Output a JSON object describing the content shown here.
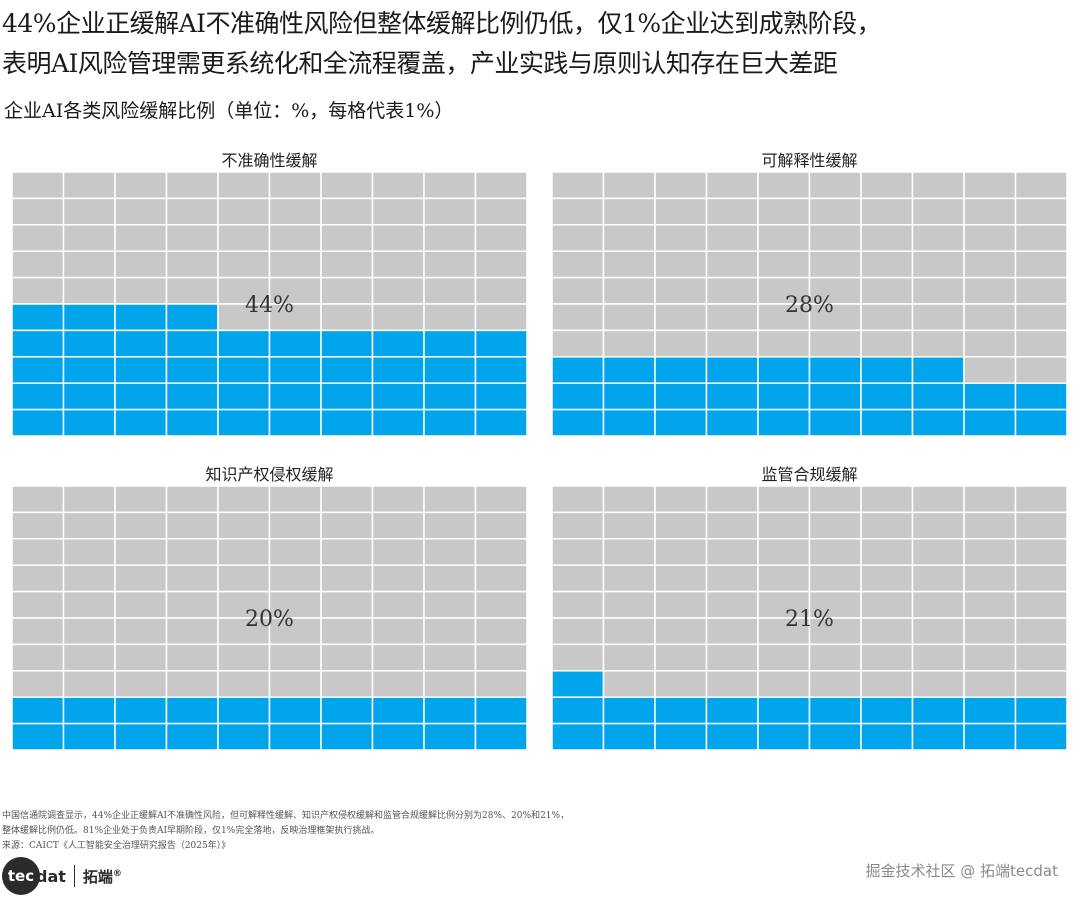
{
  "headline": {
    "line1": "44%企业正缓解AI不准确性风险但整体缓解比例仍低，仅1%企业达到成熟阶段，",
    "line2": "表明AI风险管理需更系统化和全流程覆盖，产业实践与原则认知存在巨大差距"
  },
  "subtitle": "企业AI各类风险缓解比例（单位：%，每格代表1%）",
  "colors": {
    "filled": "#00a5eb",
    "empty": "#c8c8c8",
    "gridline": "#ffffff"
  },
  "chart_data": [
    {
      "type": "waffle",
      "title": "不准确性缓解",
      "value": 44,
      "label": "44%",
      "rows": 10,
      "cols": 10,
      "max": 100
    },
    {
      "type": "waffle",
      "title": "可解释性缓解",
      "value": 28,
      "label": "28%",
      "rows": 10,
      "cols": 10,
      "max": 100
    },
    {
      "type": "waffle",
      "title": "知识产权侵权缓解",
      "value": 20,
      "label": "20%",
      "rows": 10,
      "cols": 10,
      "max": 100
    },
    {
      "type": "waffle",
      "title": "监管合规缓解",
      "value": 21,
      "label": "21%",
      "rows": 10,
      "cols": 10,
      "max": 100
    }
  ],
  "notes": {
    "line1": "中国信通院调查显示，44%企业正缓解AI不准确性风险，但可解释性缓解、知识产权侵权缓解和监管合规缓解比例分别为28%、20%和21%，",
    "line2": "整体缓解比例仍低。81%企业处于负责AI早期阶段，仅1%完全落地，反映治理框架执行挑战。",
    "line3": "来源：CAICT《人工智能安全治理研究报告（2025年）》"
  },
  "logo": {
    "circle_text": "tec",
    "rest_text": "dat",
    "cn_text": "拓端",
    "reg": "®"
  },
  "watermark": "掘金技术社区 @ 拓端tecdat"
}
